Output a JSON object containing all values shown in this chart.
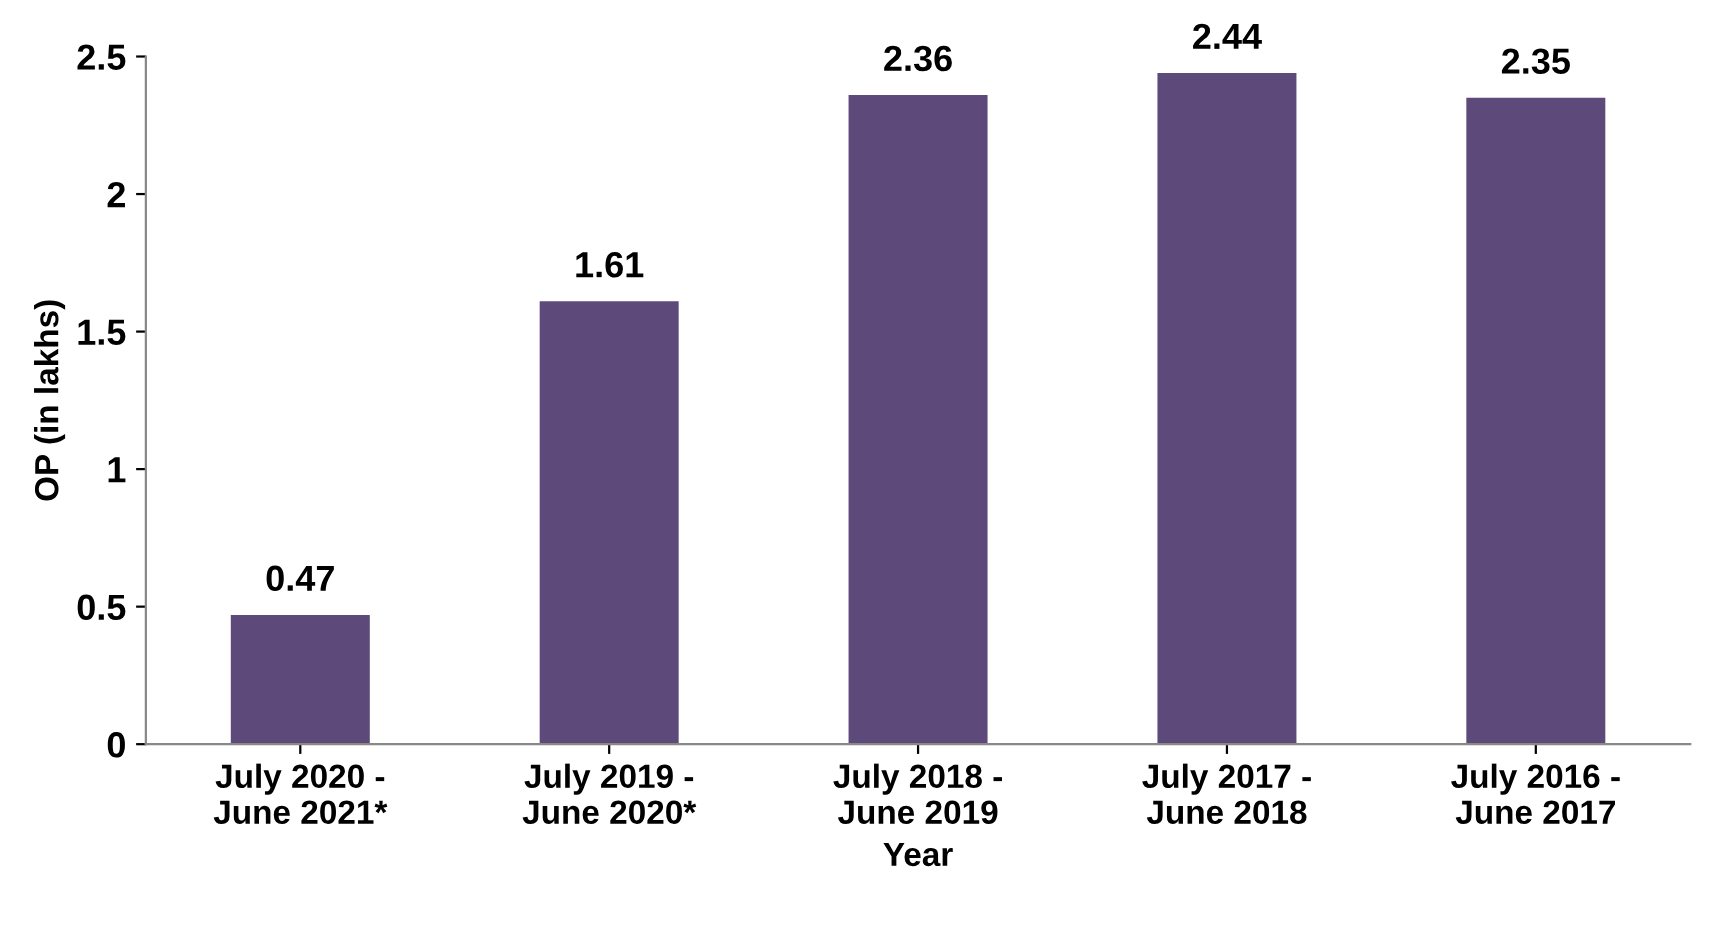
{
  "chart_data": {
    "type": "bar",
    "xlabel": "Year",
    "ylabel": "OP (in lakhs)",
    "categories": [
      "July 2020 -\nJune 2021*",
      "July 2019 -\nJune 2020*",
      "July 2018 -\nJune 2019",
      "July 2017 -\nJune 2018",
      "July 2016 -\nJune 2017"
    ],
    "values": [
      0.47,
      1.61,
      2.36,
      2.44,
      2.35
    ],
    "color": "#5e4a7a",
    "ylim": [
      0,
      2.5
    ],
    "yticks": [
      0,
      0.5,
      1,
      1.5,
      2,
      2.5
    ],
    "data_labels": true,
    "grid": false,
    "legend": false
  }
}
